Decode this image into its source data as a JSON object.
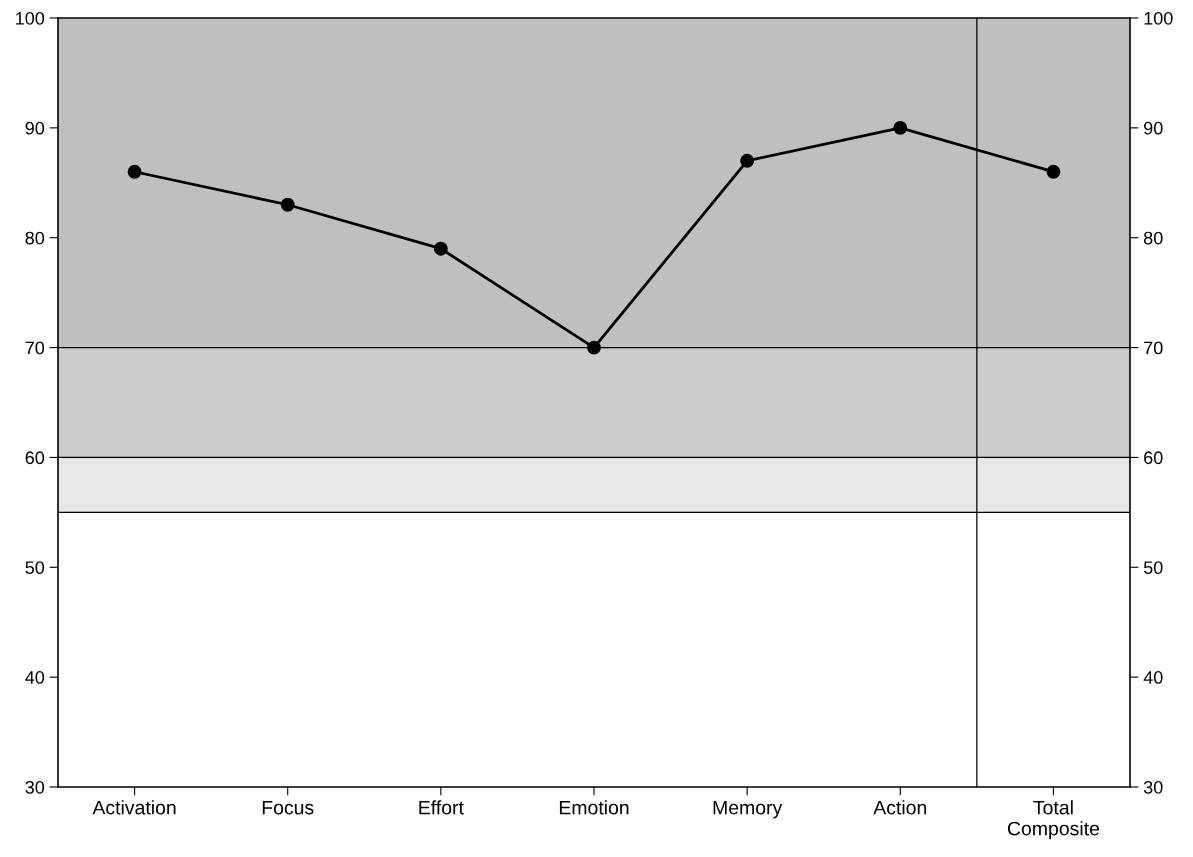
{
  "chart_data": {
    "type": "line",
    "categories": [
      "Activation",
      "Focus",
      "Effort",
      "Emotion",
      "Memory",
      "Action",
      "Total\nComposite"
    ],
    "series": [
      {
        "color": "#000000",
        "values": [
          86,
          83,
          79,
          70,
          87,
          90,
          86
        ]
      }
    ],
    "marker": "circle",
    "line_style": "solid",
    "ylim": [
      30,
      100
    ],
    "yticks": [
      30,
      40,
      50,
      60,
      70,
      80,
      90,
      100
    ],
    "y2lim": [
      30,
      100
    ],
    "y2ticks": [
      30,
      40,
      50,
      60,
      70,
      80,
      90,
      100
    ],
    "bands": [
      {
        "axis": "y",
        "from": 55,
        "to": 60,
        "color": "#e6e6e6"
      },
      {
        "axis": "y",
        "from": 60,
        "to": 70,
        "color": "#cccccc"
      },
      {
        "axis": "y",
        "from": 70,
        "to": 100,
        "color": "#bfbfbf"
      }
    ],
    "ref_lines": [
      {
        "axis": "y",
        "value": 55,
        "color": "#000000"
      },
      {
        "axis": "y",
        "value": 60,
        "color": "#000000"
      },
      {
        "axis": "y",
        "value": 70,
        "color": "#000000"
      }
    ]
  }
}
